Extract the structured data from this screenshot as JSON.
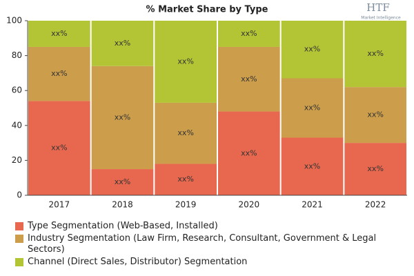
{
  "chart_data": {
    "type": "stacked_bar",
    "title": "% Market Share by Type",
    "logo": {
      "text": "HTF",
      "subtitle": "Market Intelligence"
    },
    "categories": [
      "2017",
      "2018",
      "2019",
      "2020",
      "2021",
      "2022"
    ],
    "series": [
      {
        "name": "Type Segmentation (Web-Based, Installed)",
        "color": "#e8684f",
        "values": [
          54,
          15,
          18,
          48,
          33,
          30
        ],
        "value_labels": [
          "xx%",
          "xx%",
          "xx%",
          "xx%",
          "xx%",
          "xx%"
        ]
      },
      {
        "name": "Industry Segmentation (Law Firm, Research, Consultant, Government & Legal Sectors)",
        "color": "#cc9e4c",
        "values": [
          31,
          59,
          35,
          37,
          34,
          32
        ],
        "value_labels": [
          "xx%",
          "xx%",
          "xx%",
          "xx%",
          "xx%",
          "xx%"
        ]
      },
      {
        "name": "Channel (Direct Sales, Distributor) Segmentation",
        "color": "#b3c535",
        "values": [
          15,
          26,
          47,
          15,
          33,
          38
        ],
        "value_labels": [
          "xx%",
          "xx%",
          "xx%",
          "xx%",
          "xx%",
          "xx%"
        ]
      }
    ],
    "ylim": [
      0,
      100
    ],
    "yticks": [
      0,
      20,
      40,
      60,
      80,
      100
    ],
    "grid": false
  }
}
